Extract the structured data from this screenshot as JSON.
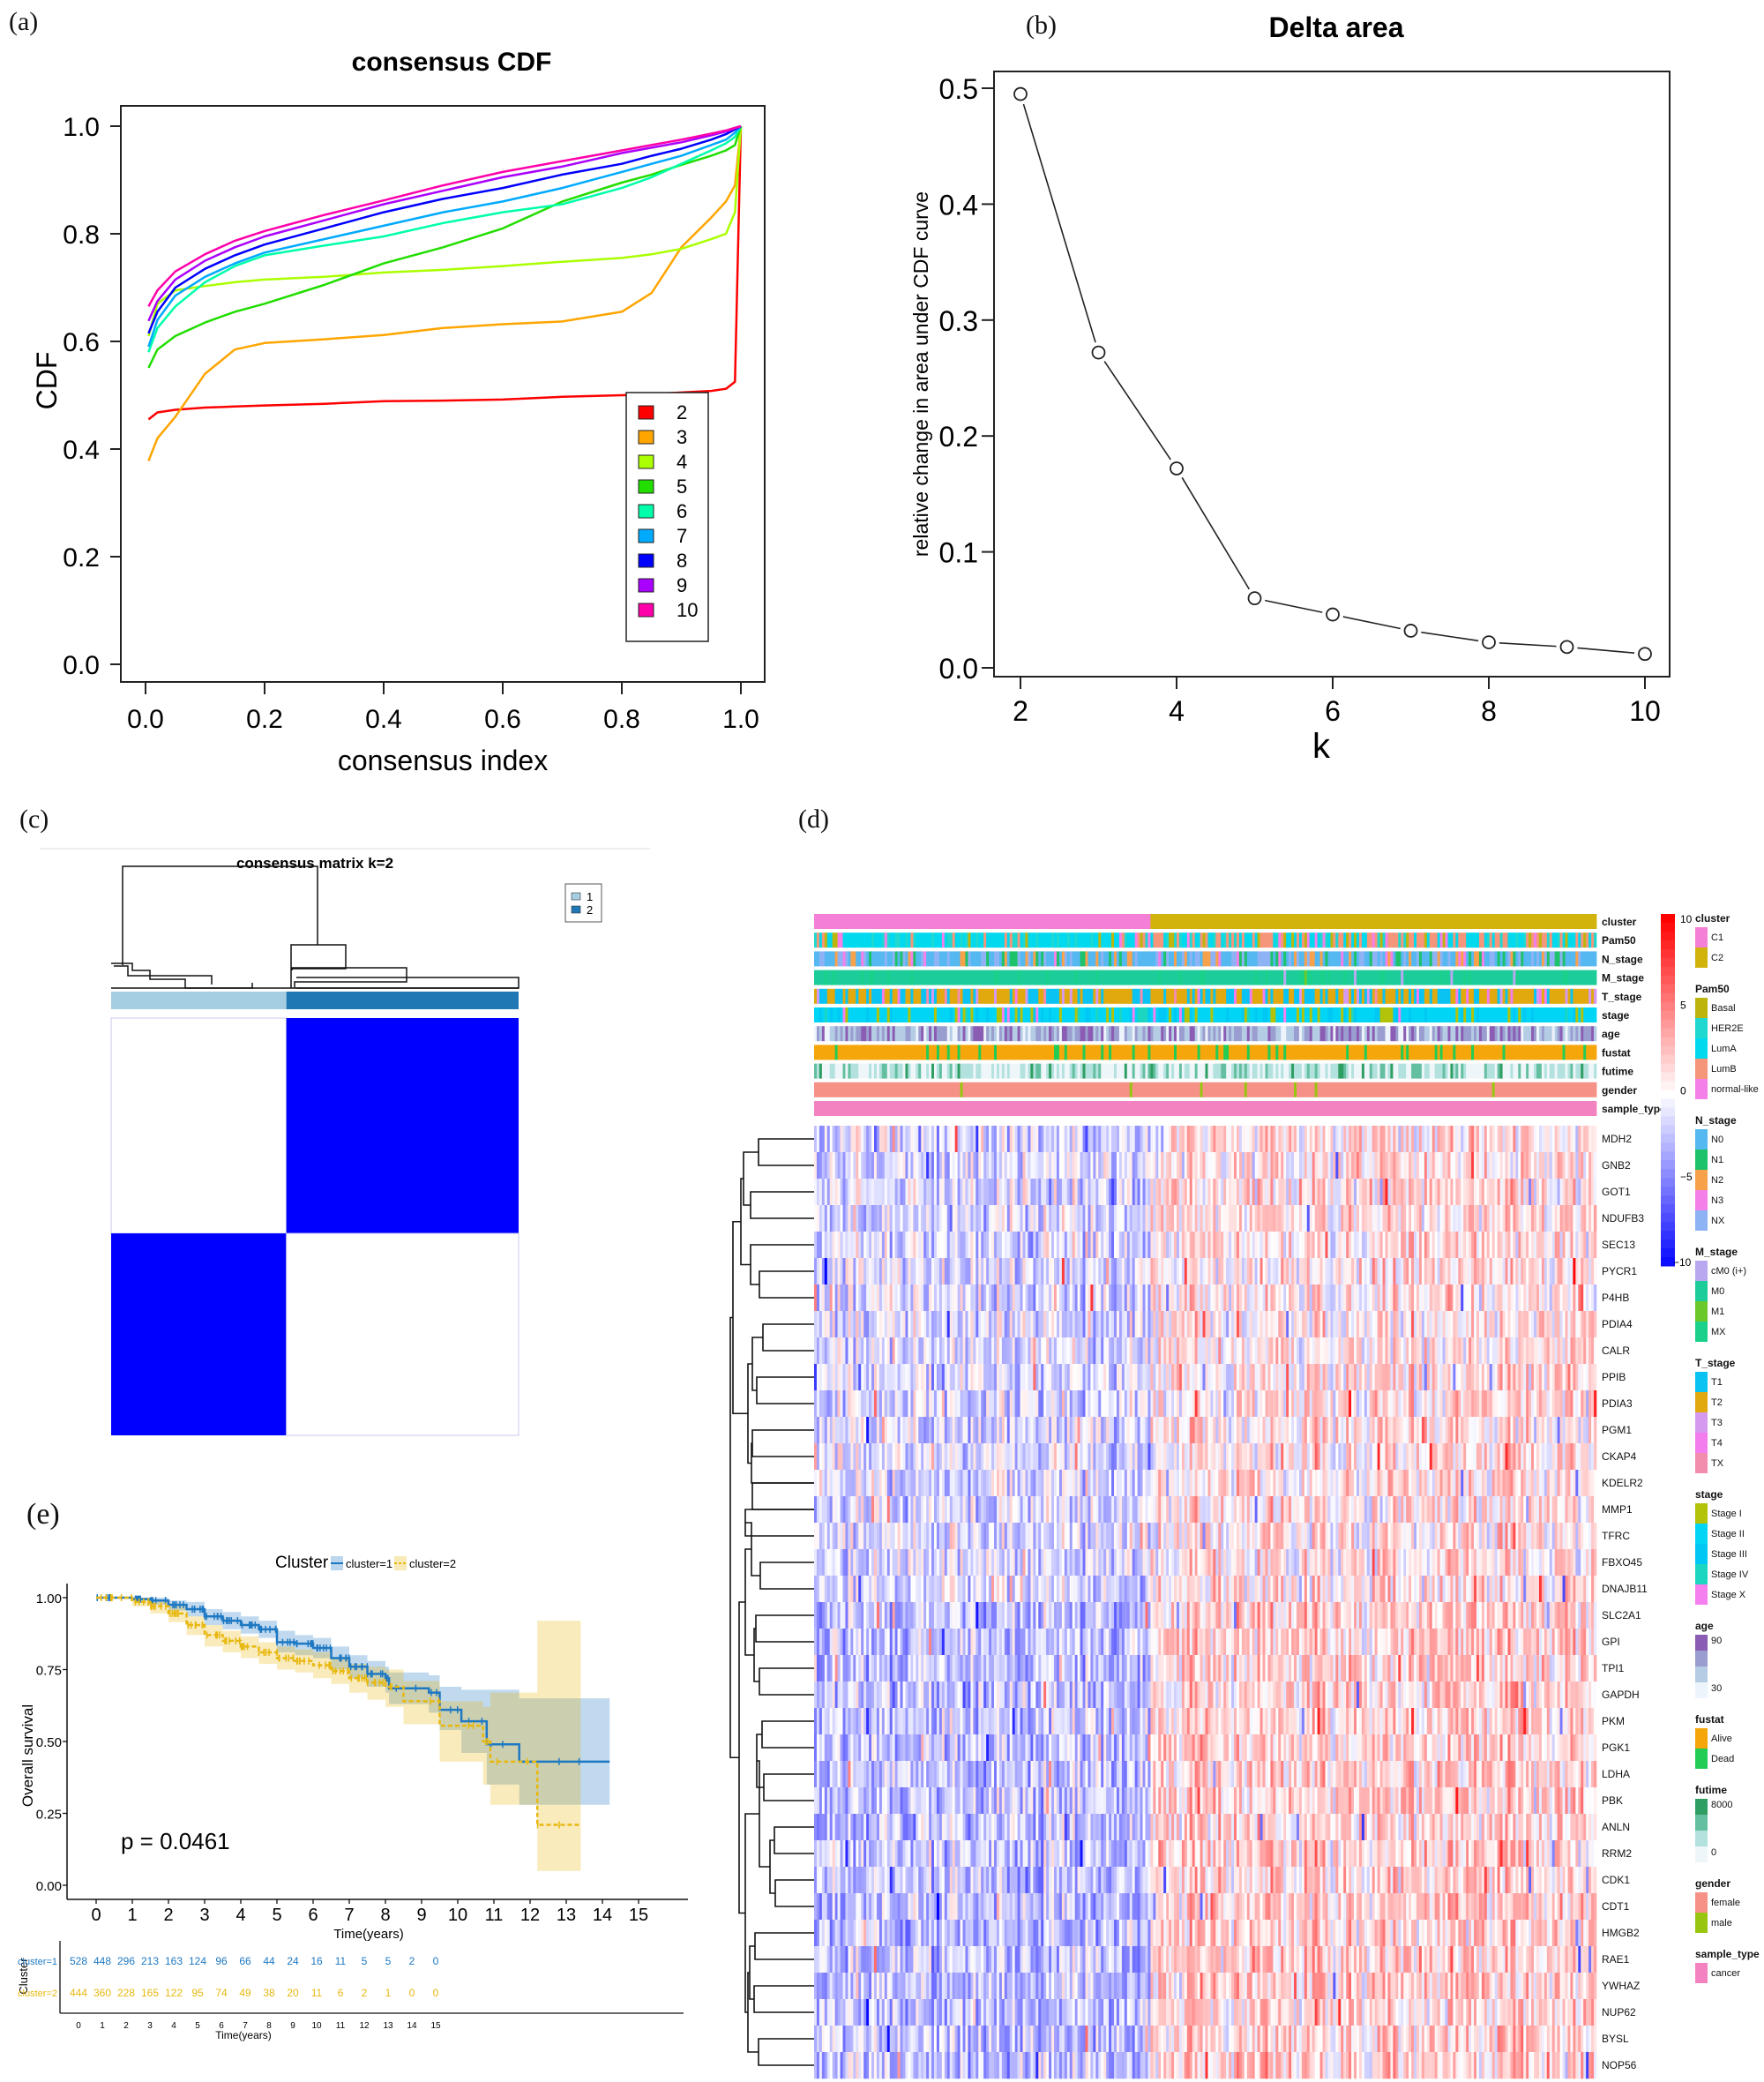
{
  "panels": {
    "a": "(a)",
    "b": "(b)",
    "c": "(c)",
    "d": "(d)",
    "e": "(e)"
  },
  "chart_data": [
    {
      "id": "a",
      "type": "line",
      "title": "consensus CDF",
      "xlabel": "consensus index",
      "ylabel": "CDF",
      "xlim": [
        0,
        1
      ],
      "ylim": [
        0,
        1
      ],
      "xticks": [
        "0.0",
        "0.2",
        "0.4",
        "0.6",
        "0.8",
        "1.0"
      ],
      "yticks": [
        "0.0",
        "0.2",
        "0.4",
        "0.6",
        "0.8",
        "1.0"
      ],
      "legend_position": "bottom-right",
      "x": [
        0.005,
        0.02,
        0.05,
        0.1,
        0.15,
        0.2,
        0.3,
        0.4,
        0.5,
        0.6,
        0.7,
        0.8,
        0.85,
        0.9,
        0.95,
        0.975,
        0.99,
        1.0
      ],
      "series": [
        {
          "name": "2",
          "color": "#FF0000",
          "values": [
            0.455,
            0.468,
            0.473,
            0.477,
            0.479,
            0.481,
            0.484,
            0.489,
            0.49,
            0.492,
            0.497,
            0.5,
            0.502,
            0.505,
            0.508,
            0.512,
            0.525,
            1.0
          ]
        },
        {
          "name": "3",
          "color": "#FFA500",
          "values": [
            0.378,
            0.42,
            0.46,
            0.54,
            0.585,
            0.597,
            0.604,
            0.612,
            0.625,
            0.632,
            0.637,
            0.655,
            0.69,
            0.775,
            0.83,
            0.86,
            0.89,
            1.0
          ]
        },
        {
          "name": "4",
          "color": "#AAFF00",
          "values": [
            0.61,
            0.67,
            0.695,
            0.703,
            0.71,
            0.715,
            0.72,
            0.728,
            0.733,
            0.74,
            0.748,
            0.755,
            0.762,
            0.772,
            0.79,
            0.8,
            0.84,
            1.0
          ]
        },
        {
          "name": "5",
          "color": "#22DD00",
          "values": [
            0.551,
            0.585,
            0.61,
            0.635,
            0.655,
            0.67,
            0.705,
            0.745,
            0.775,
            0.81,
            0.86,
            0.895,
            0.91,
            0.928,
            0.945,
            0.955,
            0.965,
            1.0
          ]
        },
        {
          "name": "6",
          "color": "#00FFAA",
          "values": [
            0.58,
            0.625,
            0.665,
            0.71,
            0.74,
            0.76,
            0.778,
            0.795,
            0.82,
            0.84,
            0.855,
            0.885,
            0.905,
            0.93,
            0.955,
            0.968,
            0.98,
            1.0
          ]
        },
        {
          "name": "7",
          "color": "#00AAFF",
          "values": [
            0.59,
            0.64,
            0.685,
            0.72,
            0.745,
            0.765,
            0.79,
            0.815,
            0.84,
            0.86,
            0.885,
            0.915,
            0.93,
            0.945,
            0.965,
            0.975,
            0.988,
            1.0
          ]
        },
        {
          "name": "8",
          "color": "#0000FF",
          "values": [
            0.615,
            0.655,
            0.7,
            0.735,
            0.76,
            0.78,
            0.81,
            0.84,
            0.865,
            0.885,
            0.91,
            0.93,
            0.945,
            0.958,
            0.975,
            0.985,
            0.994,
            1.0
          ]
        },
        {
          "name": "9",
          "color": "#AA00FF",
          "values": [
            0.638,
            0.675,
            0.715,
            0.75,
            0.775,
            0.795,
            0.825,
            0.855,
            0.88,
            0.905,
            0.925,
            0.95,
            0.96,
            0.97,
            0.983,
            0.99,
            0.996,
            1.0
          ]
        },
        {
          "name": "10",
          "color": "#FF00AA",
          "values": [
            0.665,
            0.695,
            0.73,
            0.762,
            0.787,
            0.805,
            0.835,
            0.862,
            0.89,
            0.915,
            0.935,
            0.955,
            0.965,
            0.975,
            0.986,
            0.992,
            0.997,
            1.0
          ]
        }
      ]
    },
    {
      "id": "b",
      "type": "line",
      "title": "Delta area",
      "xlabel": "k",
      "ylabel": "relative change in area under CDF curve",
      "xlim": [
        2,
        10
      ],
      "ylim": [
        0,
        0.5
      ],
      "xticks": [
        "2",
        "4",
        "6",
        "8",
        "10"
      ],
      "yticks": [
        "0.0",
        "0.1",
        "0.2",
        "0.3",
        "0.4",
        "0.5"
      ],
      "x": [
        2,
        3,
        4,
        5,
        6,
        7,
        8,
        9,
        10
      ],
      "values": [
        0.495,
        0.272,
        0.172,
        0.06,
        0.046,
        0.032,
        0.022,
        0.018,
        0.012
      ]
    },
    {
      "id": "c",
      "type": "heatmap",
      "title": "consensus matrix k=2",
      "legend": [
        {
          "label": "1",
          "color": "#A6CEE3"
        },
        {
          "label": "2",
          "color": "#1F78B4"
        }
      ],
      "cluster_fraction": [
        0.43,
        0.57
      ],
      "matrix": [
        [
          0,
          1
        ],
        [
          1,
          0
        ]
      ],
      "cell_color": "#0000FF"
    },
    {
      "id": "d",
      "type": "heatmap",
      "annotation_rows": [
        "cluster",
        "Pam50",
        "N_stage",
        "M_stage",
        "T_stage",
        "stage",
        "age",
        "fustat",
        "futime",
        "gender",
        "sample_type"
      ],
      "genes": [
        "MDH2",
        "GNB2",
        "GOT1",
        "NDUFB3",
        "SEC13",
        "PYCR1",
        "P4HB",
        "PDIA4",
        "CALR",
        "PPIB",
        "PDIA3",
        "PGM1",
        "CKAP4",
        "KDELR2",
        "MMP1",
        "TFRC",
        "FBXO45",
        "DNAJB11",
        "SLC2A1",
        "GPI",
        "TPI1",
        "GAPDH",
        "PKM",
        "PGK1",
        "LDHA",
        "PBK",
        "ANLN",
        "RRM2",
        "CDK1",
        "CDT1",
        "HMGB2",
        "RAE1",
        "YWHAZ",
        "NUP62",
        "BYSL",
        "NOP56"
      ],
      "cluster_split_fraction": 0.43,
      "color_scale": {
        "ticks": [
          "10",
          "5",
          "0",
          "−5",
          "−10"
        ],
        "min": -10,
        "max": 10,
        "low": "#0000FF",
        "mid": "#FFFFFF",
        "high": "#FF0000"
      },
      "legends": [
        {
          "title": "cluster",
          "items": [
            {
              "label": "C1",
              "color": "#F47FD6"
            },
            {
              "label": "C2",
              "color": "#D1B30C"
            }
          ]
        },
        {
          "title": "Pam50",
          "items": [
            {
              "label": "Basal",
              "color": "#BDB50C"
            },
            {
              "label": "HER2E",
              "color": "#1FD8D0"
            },
            {
              "label": "LumA",
              "color": "#00D9EE"
            },
            {
              "label": "LumB",
              "color": "#F5967A"
            },
            {
              "label": "normal-like",
              "color": "#F57FE8"
            }
          ]
        },
        {
          "title": "N_stage",
          "items": [
            {
              "label": "N0",
              "color": "#55B8F0"
            },
            {
              "label": "N1",
              "color": "#1DC26A"
            },
            {
              "label": "N2",
              "color": "#F7A24B"
            },
            {
              "label": "N3",
              "color": "#F47FE8"
            },
            {
              "label": "NX",
              "color": "#8EB3F5"
            }
          ]
        },
        {
          "title": "M_stage",
          "items": [
            {
              "label": "cM0 (i+)",
              "color": "#B9A8F0"
            },
            {
              "label": "M0",
              "color": "#1CCD9A"
            },
            {
              "label": "M1",
              "color": "#6AC82A"
            },
            {
              "label": "MX",
              "color": "#19D18A"
            }
          ]
        },
        {
          "title": "T_stage",
          "items": [
            {
              "label": "T1",
              "color": "#0AC3F2"
            },
            {
              "label": "T2",
              "color": "#E1A90E"
            },
            {
              "label": "T3",
              "color": "#D59AF0"
            },
            {
              "label": "T4",
              "color": "#F37DEC"
            },
            {
              "label": "TX",
              "color": "#F28DAE"
            }
          ]
        },
        {
          "title": "stage",
          "items": [
            {
              "label": "Stage I",
              "color": "#B2C30A"
            },
            {
              "label": "Stage II",
              "color": "#00D5F5"
            },
            {
              "label": "Stage III",
              "color": "#00C8F5"
            },
            {
              "label": "Stage IV",
              "color": "#1CD6C2"
            },
            {
              "label": "Stage X",
              "color": "#F67FF0"
            }
          ]
        },
        {
          "title": "age",
          "items": [
            {
              "label": "90",
              "color": "#8B5CB3"
            },
            {
              "label": "",
              "color": "#9A9DCF"
            },
            {
              "label": "",
              "color": "#B5CCE5"
            },
            {
              "label": "30",
              "color": "#EEF4FB"
            }
          ]
        },
        {
          "title": "fustat",
          "items": [
            {
              "label": "Alive",
              "color": "#F5A60A"
            },
            {
              "label": "Dead",
              "color": "#22CC55"
            }
          ]
        },
        {
          "title": "futime",
          "items": [
            {
              "label": "8000",
              "color": "#2E9E62"
            },
            {
              "label": "",
              "color": "#63BFA0"
            },
            {
              "label": "",
              "color": "#B3E2DE"
            },
            {
              "label": "0",
              "color": "#EEF6FA"
            }
          ]
        },
        {
          "title": "gender",
          "items": [
            {
              "label": "female",
              "color": "#F59187"
            },
            {
              "label": "male",
              "color": "#98C610"
            }
          ]
        },
        {
          "title": "sample_type",
          "items": [
            {
              "label": "cancer",
              "color": "#F383C0"
            }
          ]
        }
      ]
    },
    {
      "id": "e",
      "type": "line",
      "legend_title": "Cluster",
      "legend": [
        {
          "label": "cluster=1",
          "color": "#1E78C2"
        },
        {
          "label": "cluster=2",
          "color": "#E8B810"
        }
      ],
      "xlabel": "Time(years)",
      "ylabel": "Overall survival",
      "xlim": [
        0,
        15
      ],
      "ylim": [
        0,
        1
      ],
      "xticks": [
        "0",
        "1",
        "2",
        "3",
        "4",
        "5",
        "6",
        "7",
        "8",
        "9",
        "10",
        "11",
        "12",
        "13",
        "14",
        "15"
      ],
      "yticks": [
        "0.00",
        "0.25",
        "0.50",
        "0.75",
        "1.00"
      ],
      "annotation": "p = 0.0461",
      "series": [
        {
          "name": "cluster=1",
          "color": "#1E78C2",
          "x": [
            0,
            1,
            1.5,
            2,
            2.5,
            3,
            3.5,
            4,
            4.5,
            5,
            5.5,
            6,
            6.5,
            7,
            7.5,
            8,
            8.1,
            9.2,
            9.5,
            10.1,
            10.8,
            11.7,
            14.2
          ],
          "values": [
            1.0,
            0.995,
            0.99,
            0.975,
            0.96,
            0.935,
            0.92,
            0.905,
            0.89,
            0.845,
            0.84,
            0.825,
            0.79,
            0.76,
            0.735,
            0.72,
            0.685,
            0.67,
            0.61,
            0.57,
            0.49,
            0.43,
            0.43
          ],
          "ci_upper": [
            1.0,
            1.0,
            1.0,
            0.99,
            0.985,
            0.96,
            0.95,
            0.935,
            0.92,
            0.885,
            0.87,
            0.86,
            0.83,
            0.8,
            0.78,
            0.76,
            0.74,
            0.73,
            0.69,
            0.68,
            0.68,
            0.65,
            0.65
          ],
          "ci_lower": [
            1.0,
            0.99,
            0.975,
            0.955,
            0.935,
            0.905,
            0.89,
            0.875,
            0.86,
            0.81,
            0.8,
            0.79,
            0.75,
            0.72,
            0.69,
            0.67,
            0.63,
            0.6,
            0.54,
            0.46,
            0.35,
            0.28,
            0.28
          ]
        },
        {
          "name": "cluster=2",
          "color": "#E8B810",
          "x": [
            0,
            1,
            1.5,
            2,
            2.5,
            3,
            3.5,
            4,
            4.5,
            5,
            5.5,
            6,
            6.5,
            7,
            7.5,
            8,
            8.5,
            9.5,
            10.7,
            10.9,
            12.2,
            13.4
          ],
          "values": [
            1.0,
            0.985,
            0.97,
            0.945,
            0.905,
            0.87,
            0.85,
            0.83,
            0.81,
            0.79,
            0.78,
            0.765,
            0.745,
            0.72,
            0.705,
            0.69,
            0.64,
            0.555,
            0.5,
            0.43,
            0.21,
            0.21
          ],
          "ci_upper": [
            1.0,
            1.0,
            0.99,
            0.97,
            0.935,
            0.905,
            0.885,
            0.865,
            0.845,
            0.83,
            0.82,
            0.81,
            0.79,
            0.77,
            0.76,
            0.75,
            0.71,
            0.64,
            0.62,
            0.67,
            0.92,
            0.92
          ],
          "ci_lower": [
            1.0,
            0.97,
            0.945,
            0.915,
            0.87,
            0.83,
            0.81,
            0.79,
            0.77,
            0.75,
            0.74,
            0.72,
            0.7,
            0.67,
            0.645,
            0.62,
            0.56,
            0.43,
            0.35,
            0.28,
            0.05,
            0.05
          ]
        }
      ],
      "risk_table": {
        "title": "Cluster",
        "xlabel": "Time(years)",
        "rows": [
          {
            "label": "cluster=1",
            "color": "#1E78C2",
            "values": [
              "528",
              "448",
              "296",
              "213",
              "163",
              "124",
              "96",
              "66",
              "44",
              "24",
              "16",
              "11",
              "5",
              "5",
              "2",
              "0"
            ]
          },
          {
            "label": "cluster=2",
            "color": "#E8B810",
            "values": [
              "444",
              "360",
              "228",
              "165",
              "122",
              "95",
              "74",
              "49",
              "38",
              "20",
              "11",
              "6",
              "2",
              "1",
              "0",
              "0"
            ]
          }
        ]
      }
    }
  ]
}
